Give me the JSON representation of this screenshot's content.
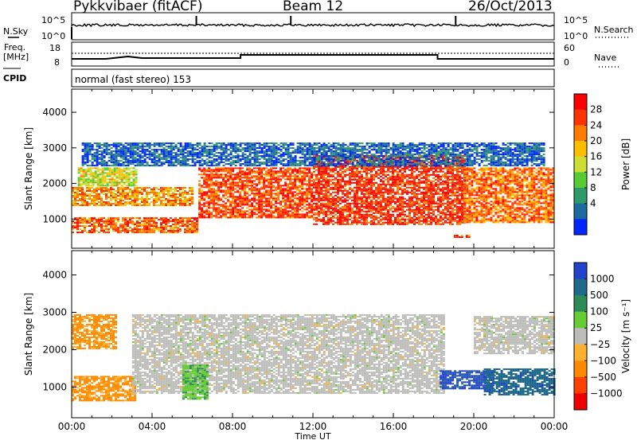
{
  "header": {
    "station": "Pykkvibaer (fitACF)",
    "beam": "Beam 12",
    "date": "26/Oct/2013"
  },
  "top_panels": {
    "nsky_label": "N.Sky",
    "nsky_ticks": [
      "10^5",
      "10^0"
    ],
    "nsearch_label": "N.Search",
    "nsearch_ticks": [
      "10^5",
      "10^0"
    ],
    "freq_label_1": "Freq.",
    "freq_label_2": "[MHz]",
    "freq_ticks": [
      "18",
      "8"
    ],
    "nave_label": "Nave",
    "nave_ticks": [
      "60",
      "0"
    ],
    "cpid_label": "CPID",
    "cpid_text": "normal (fast stereo) 153"
  },
  "chart_data": [
    {
      "type": "heatmap",
      "name": "power",
      "xlabel": "",
      "ylabel": "Slant Range [km]",
      "x_range_hours": [
        0,
        24
      ],
      "ylim": [
        180,
        4650
      ],
      "y_ticks": [
        1000,
        2000,
        3000,
        4000
      ],
      "colorbar": {
        "label": "Power [dB]",
        "ticks": [
          "28",
          "24",
          "20",
          "16",
          "12",
          "8",
          "4"
        ],
        "colors": [
          "#ff0000",
          "#ff3300",
          "#ff7a00",
          "#ffbd00",
          "#ccdd33",
          "#55cc33",
          "#2e9a6a",
          "#1c6aa0",
          "#0026ff"
        ]
      },
      "bands": [
        {
          "t": [
            0.0,
            6.2
          ],
          "r": [
            620,
            1050
          ],
          "level": 0.78
        },
        {
          "t": [
            0.0,
            6.0
          ],
          "r": [
            1400,
            1900
          ],
          "level": 0.68
        },
        {
          "t": [
            0.3,
            3.2
          ],
          "r": [
            1950,
            2450
          ],
          "level": 0.52
        },
        {
          "t": [
            6.3,
            12.0
          ],
          "r": [
            1050,
            2450
          ],
          "level": 0.82
        },
        {
          "t": [
            12.0,
            19.5
          ],
          "r": [
            850,
            2800
          ],
          "level": 0.86
        },
        {
          "t": [
            19.5,
            24.0
          ],
          "r": [
            900,
            2450
          ],
          "level": 0.75
        },
        {
          "t": [
            0.5,
            23.5
          ],
          "r": [
            2500,
            3150
          ],
          "level": 0.15
        },
        {
          "t": [
            19.0,
            19.8
          ],
          "r": [
            480,
            560
          ],
          "level": 0.8
        }
      ]
    },
    {
      "type": "heatmap",
      "name": "velocity",
      "xlabel": "Time UT",
      "ylabel": "Slant Range [km]",
      "x_range_hours": [
        0,
        24
      ],
      "x_ticks": [
        "00:00",
        "04:00",
        "08:00",
        "12:00",
        "16:00",
        "20:00",
        "00:00"
      ],
      "ylim": [
        180,
        4650
      ],
      "y_ticks": [
        1000,
        2000,
        3000,
        4000
      ],
      "colorbar": {
        "label": "Velocity [m s⁻¹]",
        "ticks": [
          "1000",
          "500",
          "100",
          "25",
          "−25",
          "−100",
          "−500",
          "−1000"
        ],
        "colors": [
          "#2244cc",
          "#1e6a8c",
          "#2e8b57",
          "#66cc33",
          "#bcbcb8",
          "#ffb02e",
          "#ff8a00",
          "#ff4000",
          "#ee0000"
        ]
      },
      "bands": [
        {
          "t": [
            0.0,
            3.2
          ],
          "r": [
            620,
            1300
          ],
          "level": 0.3
        },
        {
          "t": [
            0.0,
            2.2
          ],
          "r": [
            2050,
            2950
          ],
          "level": 0.3
        },
        {
          "t": [
            3.0,
            18.5
          ],
          "r": [
            850,
            2950
          ],
          "level": 0.5
        },
        {
          "t": [
            5.5,
            6.8
          ],
          "r": [
            700,
            1600
          ],
          "level": 0.64
        },
        {
          "t": [
            18.3,
            21.0
          ],
          "r": [
            950,
            1450
          ],
          "level": 0.92
        },
        {
          "t": [
            20.5,
            24.0
          ],
          "r": [
            800,
            1500
          ],
          "level": 0.84
        },
        {
          "t": [
            20.0,
            24.0
          ],
          "r": [
            1900,
            2900
          ],
          "level": 0.5
        }
      ]
    }
  ]
}
